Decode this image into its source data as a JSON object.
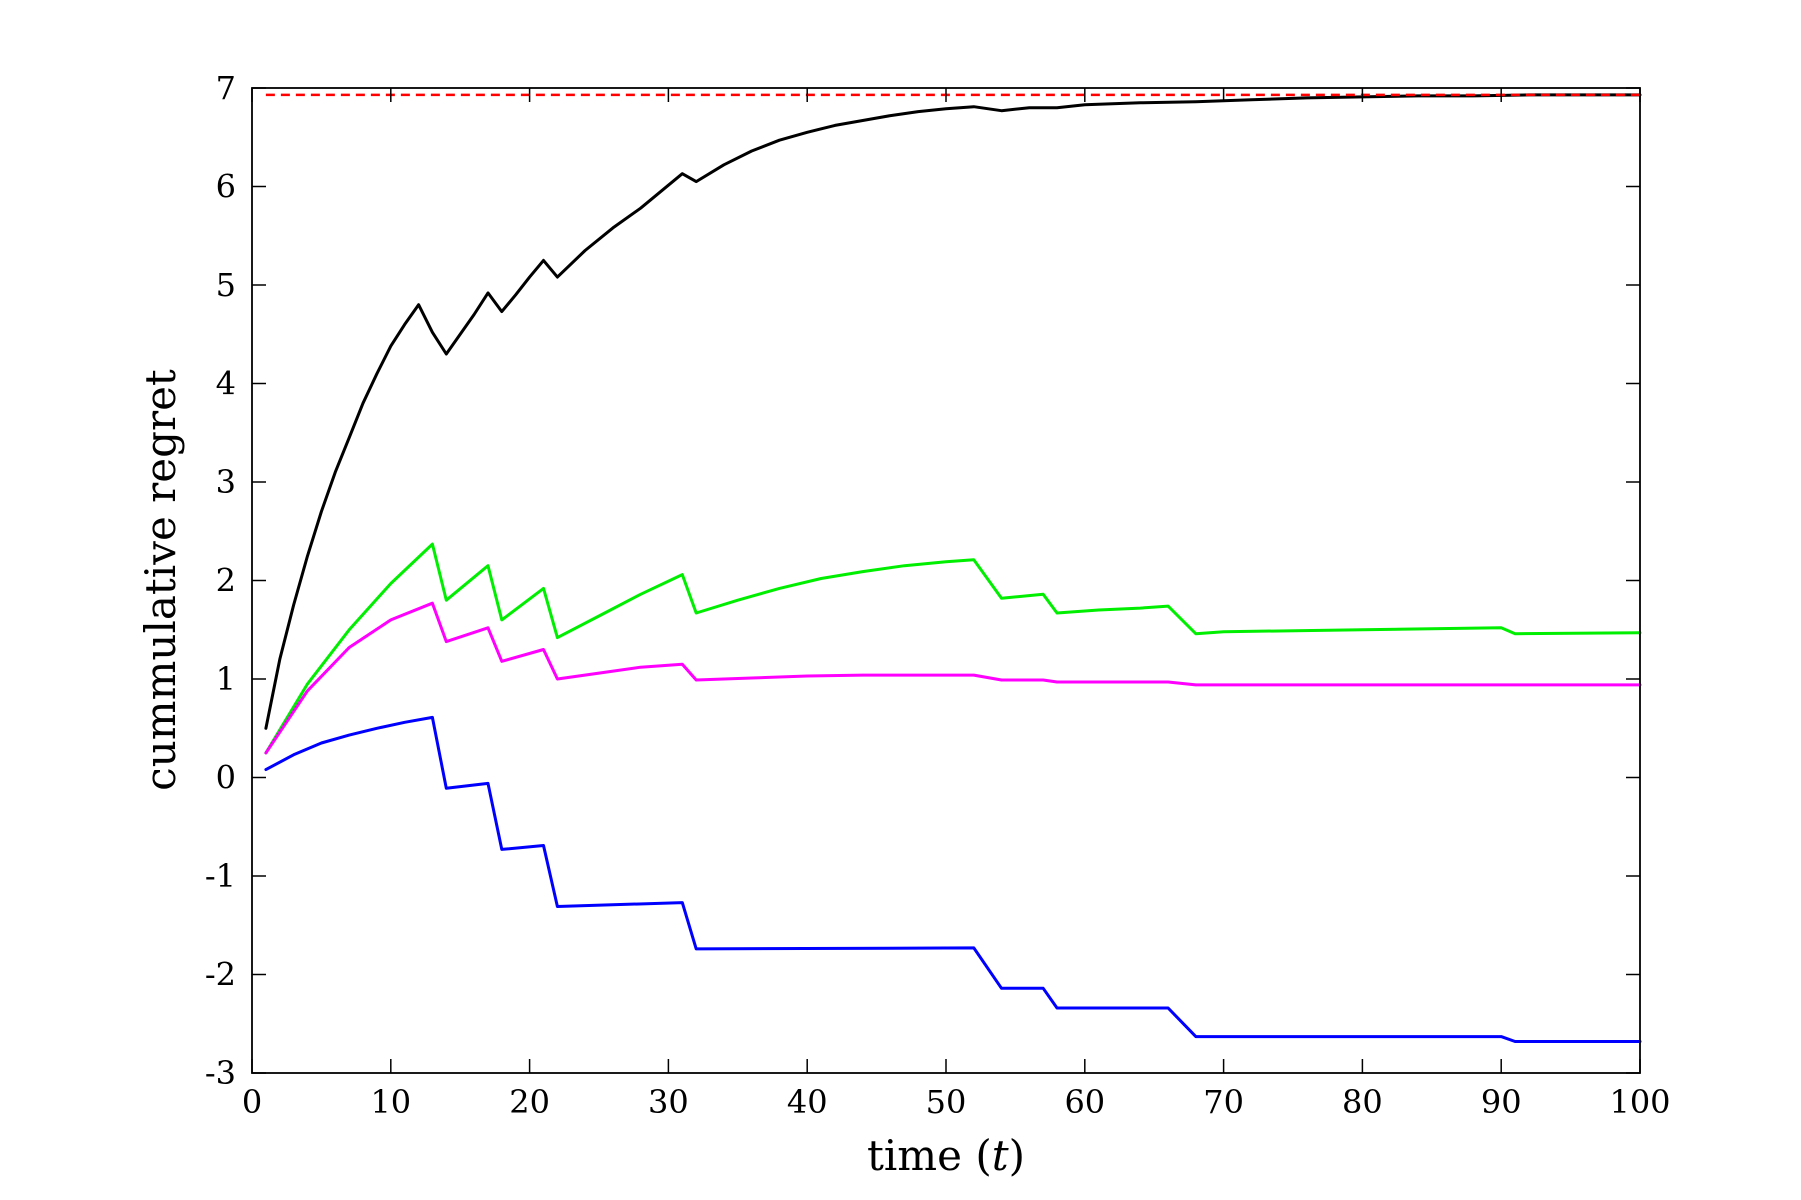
{
  "chart_data": {
    "type": "line",
    "title": "",
    "xlabel_prefix": "time (",
    "xlabel_var": "t",
    "xlabel_suffix": ")",
    "ylabel": "cummulative regret",
    "xlim": [
      0,
      100
    ],
    "ylim": [
      -3,
      7
    ],
    "xticks": [
      0,
      10,
      20,
      30,
      40,
      50,
      60,
      70,
      80,
      90,
      100
    ],
    "yticks": [
      -3,
      -2,
      -1,
      0,
      1,
      2,
      3,
      4,
      5,
      6,
      7
    ],
    "grid": false,
    "legend": "none",
    "reference_line": {
      "y": 6.93,
      "x": [
        1,
        100
      ],
      "color": "#ff0000",
      "style": "dashed"
    },
    "series": [
      {
        "color": "#000000",
        "x": [
          1,
          2,
          3,
          4,
          5,
          6,
          7,
          8,
          9,
          10,
          11,
          12,
          13,
          14,
          15,
          16,
          17,
          18,
          19,
          20,
          21,
          22,
          24,
          26,
          28,
          31,
          32,
          34,
          36,
          38,
          40,
          42,
          44,
          46,
          48,
          50,
          52,
          54,
          56,
          58,
          60,
          64,
          68,
          72,
          76,
          80,
          84,
          88,
          92,
          96,
          100
        ],
        "y": [
          0.5,
          1.2,
          1.75,
          2.25,
          2.7,
          3.1,
          3.45,
          3.8,
          4.1,
          4.38,
          4.6,
          4.8,
          4.52,
          4.3,
          4.5,
          4.7,
          4.92,
          4.73,
          4.9,
          5.08,
          5.25,
          5.08,
          5.35,
          5.58,
          5.78,
          6.13,
          6.05,
          6.22,
          6.36,
          6.47,
          6.55,
          6.62,
          6.67,
          6.72,
          6.76,
          6.79,
          6.81,
          6.77,
          6.8,
          6.8,
          6.83,
          6.85,
          6.86,
          6.88,
          6.9,
          6.91,
          6.92,
          6.92,
          6.93,
          6.93,
          6.93
        ]
      },
      {
        "color": "#00ee00",
        "x": [
          1,
          4,
          7,
          10,
          13,
          14,
          17,
          18,
          21,
          22,
          25,
          28,
          31,
          32,
          35,
          38,
          41,
          44,
          47,
          50,
          52,
          54,
          57,
          58,
          61,
          64,
          66,
          68,
          70,
          80,
          90,
          91,
          100
        ],
        "y": [
          0.25,
          0.95,
          1.5,
          1.97,
          2.37,
          1.8,
          2.15,
          1.6,
          1.92,
          1.42,
          1.64,
          1.86,
          2.06,
          1.67,
          1.8,
          1.92,
          2.02,
          2.09,
          2.15,
          2.19,
          2.21,
          1.82,
          1.86,
          1.67,
          1.7,
          1.72,
          1.74,
          1.46,
          1.48,
          1.5,
          1.52,
          1.46,
          1.47
        ]
      },
      {
        "color": "#ff00ff",
        "x": [
          1,
          4,
          7,
          10,
          13,
          14,
          17,
          18,
          21,
          22,
          25,
          28,
          31,
          32,
          36,
          40,
          44,
          48,
          52,
          54,
          57,
          58,
          62,
          66,
          68,
          80,
          90,
          100
        ],
        "y": [
          0.25,
          0.88,
          1.32,
          1.6,
          1.77,
          1.38,
          1.52,
          1.18,
          1.3,
          1.0,
          1.06,
          1.12,
          1.15,
          0.99,
          1.01,
          1.03,
          1.04,
          1.04,
          1.04,
          0.99,
          0.99,
          0.97,
          0.97,
          0.97,
          0.94,
          0.94,
          0.94,
          0.94
        ]
      },
      {
        "color": "#0000ff",
        "x": [
          1,
          3,
          5,
          7,
          9,
          11,
          13,
          14,
          17,
          18,
          21,
          22,
          31,
          32,
          52,
          54,
          57,
          58,
          66,
          68,
          90,
          91,
          100
        ],
        "y": [
          0.08,
          0.23,
          0.35,
          0.43,
          0.5,
          0.56,
          0.61,
          -0.11,
          -0.06,
          -0.73,
          -0.69,
          -1.31,
          -1.27,
          -1.74,
          -1.73,
          -2.14,
          -2.14,
          -2.34,
          -2.34,
          -2.63,
          -2.63,
          -2.68,
          -2.68
        ]
      }
    ]
  }
}
